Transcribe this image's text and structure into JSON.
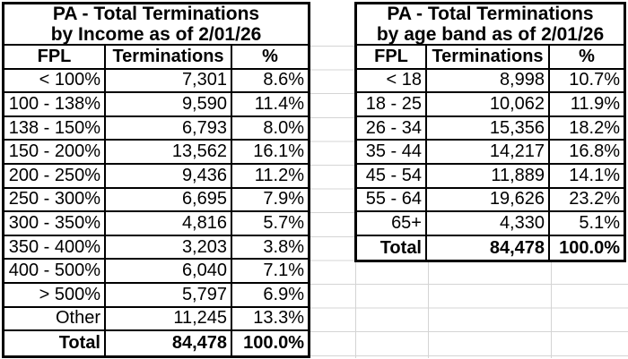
{
  "colors": {
    "grid_line": "#d4d4d4",
    "table_border": "#000000",
    "text": "#000000",
    "background": "#ffffff"
  },
  "tables": [
    {
      "title_line1": "PA - Total Terminations",
      "title_line2": "by Income as of 2/01/26",
      "columns": [
        "FPL",
        "Terminations",
        "%"
      ],
      "rows": [
        [
          "< 100%",
          "7,301",
          "8.6%"
        ],
        [
          "100 - 138%",
          "9,590",
          "11.4%"
        ],
        [
          "138 - 150%",
          "6,793",
          "8.0%"
        ],
        [
          "150 - 200%",
          "13,562",
          "16.1%"
        ],
        [
          "200 - 250%",
          "9,436",
          "11.2%"
        ],
        [
          "250 - 300%",
          "6,695",
          "7.9%"
        ],
        [
          "300 - 350%",
          "4,816",
          "5.7%"
        ],
        [
          "350 - 400%",
          "3,203",
          "3.8%"
        ],
        [
          "400 - 500%",
          "6,040",
          "7.1%"
        ],
        [
          "> 500%",
          "5,797",
          "6.9%"
        ],
        [
          "Other",
          "11,245",
          "13.3%"
        ]
      ],
      "total_row": [
        "Total",
        "84,478",
        "100.0%"
      ]
    },
    {
      "title_line1": "PA - Total Terminations",
      "title_line2": "by age band as of 2/01/26",
      "columns": [
        "FPL",
        "Terminations",
        "%"
      ],
      "rows": [
        [
          "< 18",
          "8,998",
          "10.7%"
        ],
        [
          "18 - 25",
          "10,062",
          "11.9%"
        ],
        [
          "26 - 34",
          "15,356",
          "18.2%"
        ],
        [
          "35 - 44",
          "14,217",
          "16.8%"
        ],
        [
          "45 - 54",
          "11,889",
          "14.1%"
        ],
        [
          "55 - 64",
          "19,626",
          "23.2%"
        ],
        [
          "65+",
          "4,330",
          "5.1%"
        ]
      ],
      "total_row": [
        "Total",
        "84,478",
        "100.0%"
      ]
    }
  ]
}
